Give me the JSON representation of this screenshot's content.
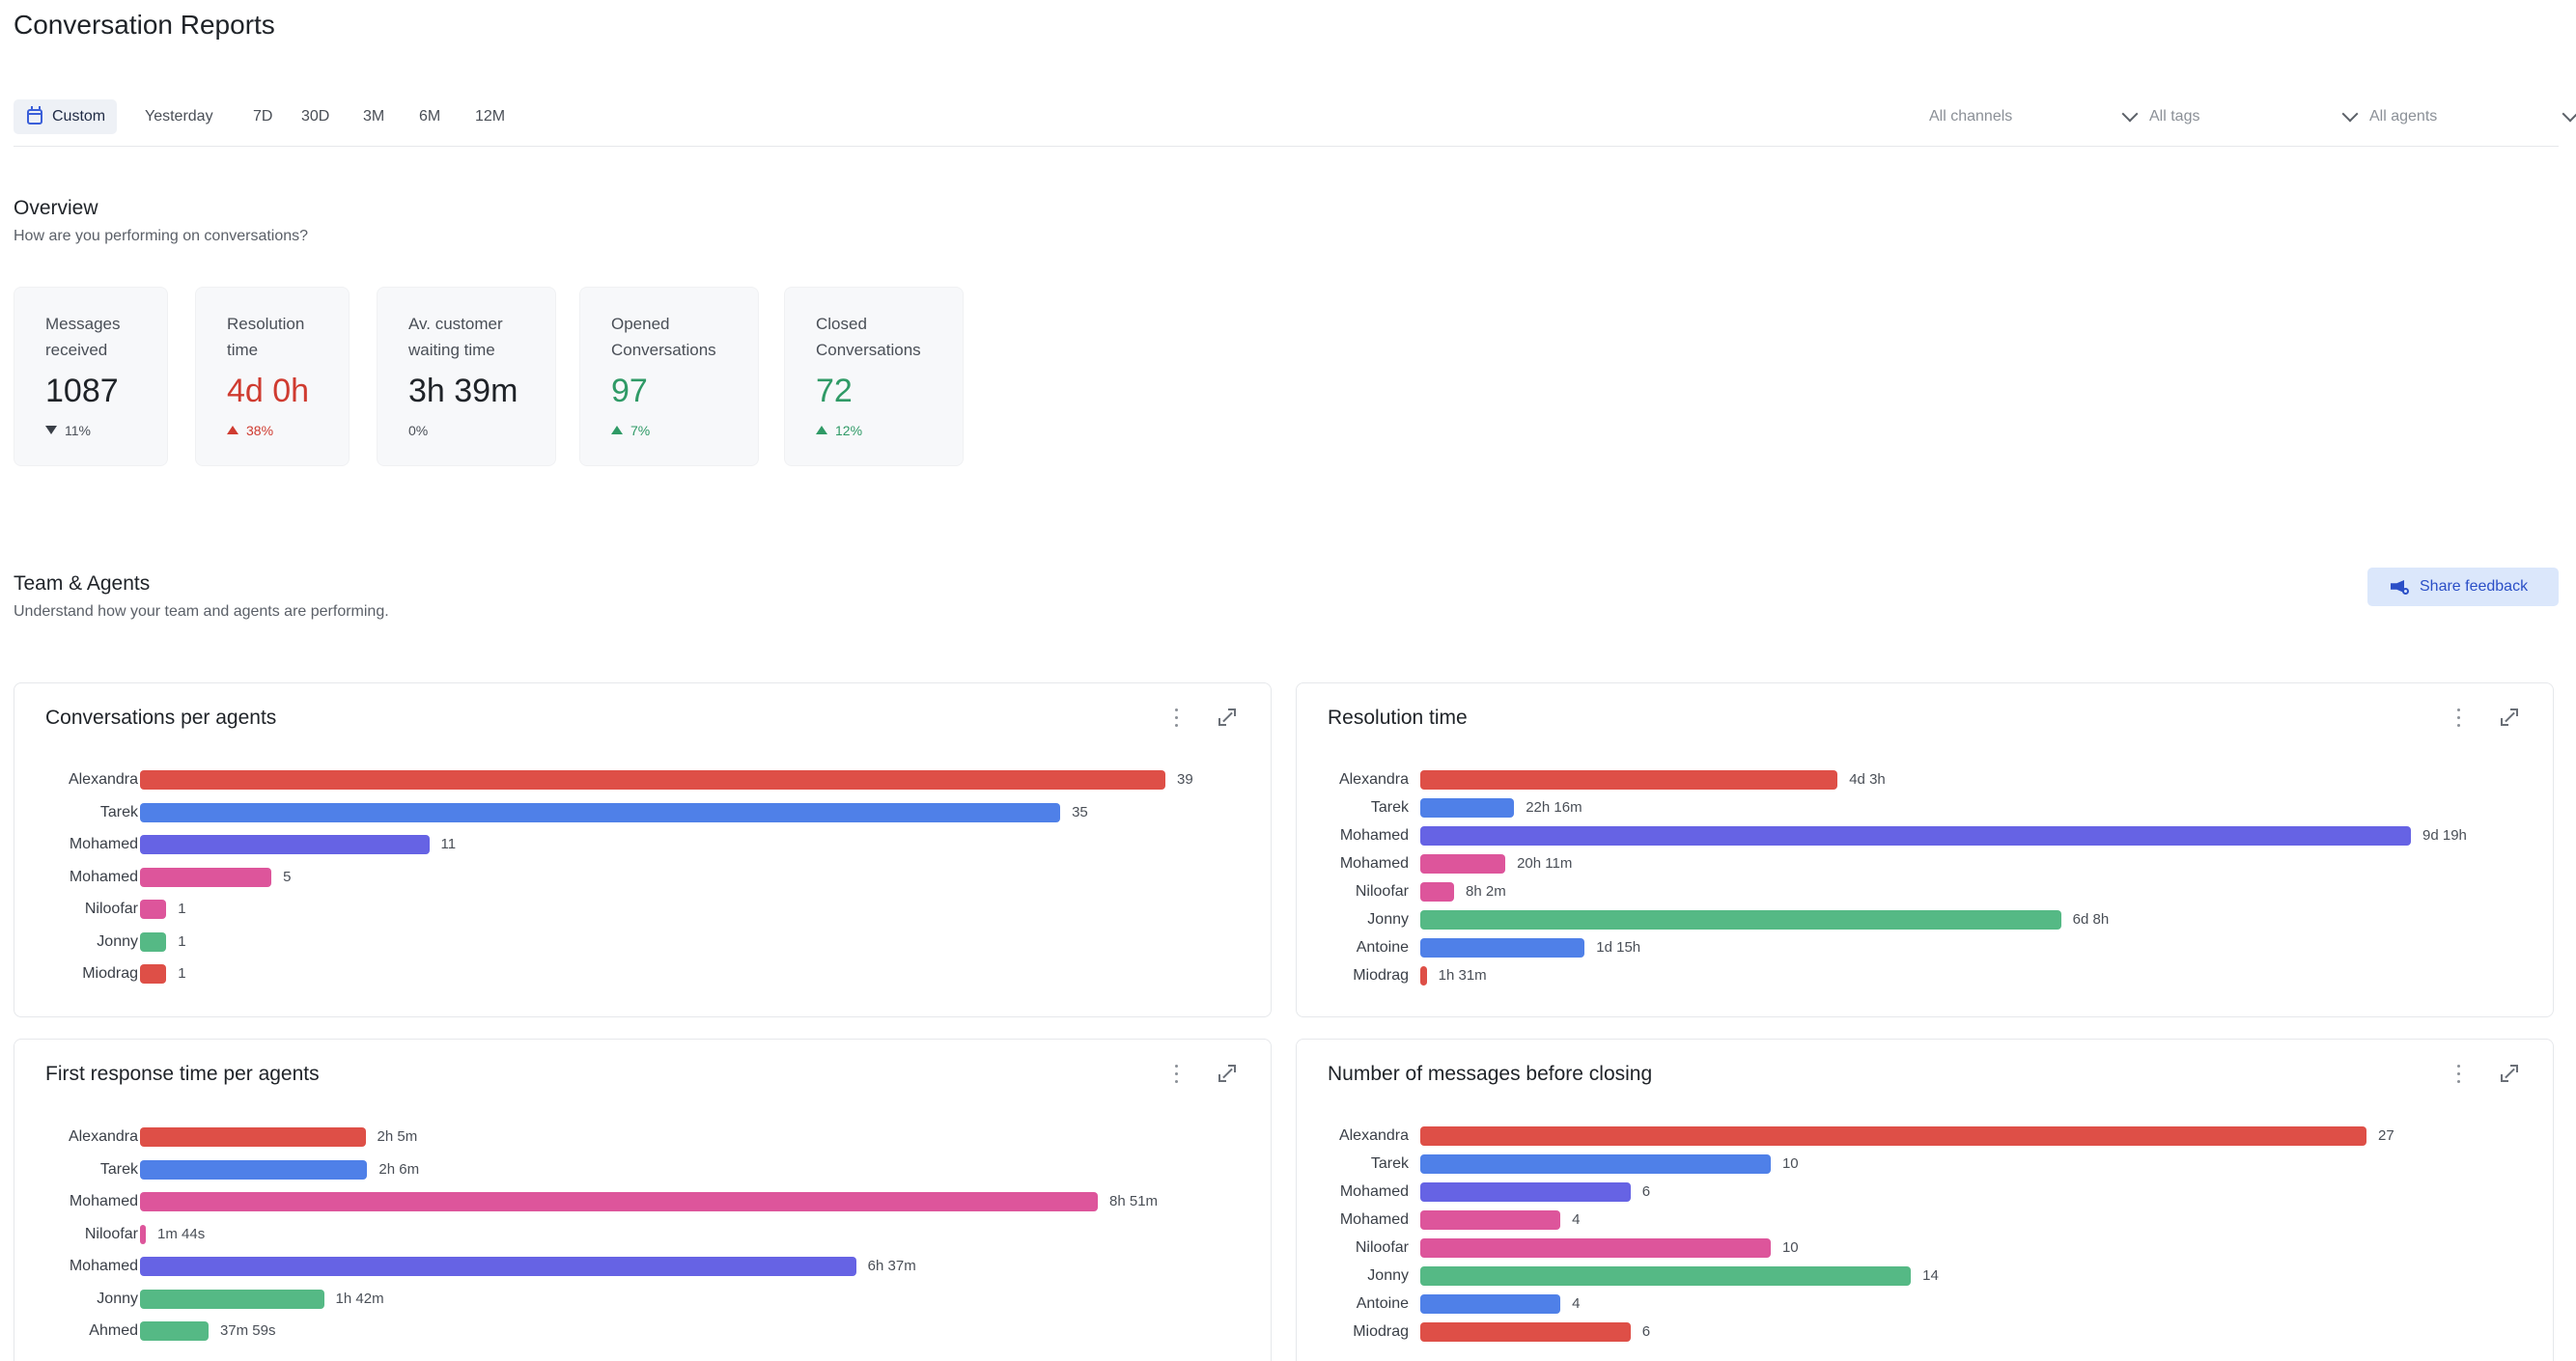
{
  "page": {
    "title": "Conversation Reports"
  },
  "toolbar": {
    "ranges": [
      "Custom",
      "Yesterday",
      "7D",
      "30D",
      "3M",
      "6M",
      "12M"
    ],
    "active_range": "Custom",
    "filters": {
      "channels": "All channels",
      "tags": "All tags",
      "agents": "All agents"
    }
  },
  "overview": {
    "title": "Overview",
    "subtitle": "How are you performing on conversations?",
    "kpis": [
      {
        "label": "Messages\nreceived",
        "value": "1087",
        "delta": "11%",
        "trend": "down",
        "tone": "neutral"
      },
      {
        "label": "Resolution\ntime",
        "value": "4d 0h",
        "delta": "38%",
        "trend": "up",
        "tone": "red"
      },
      {
        "label": "Av. customer\nwaiting time",
        "value": "3h 39m",
        "delta": "0%",
        "trend": "flat",
        "tone": "neutral"
      },
      {
        "label": "Opened\nConversations",
        "value": "97",
        "delta": "7%",
        "trend": "up",
        "tone": "green"
      },
      {
        "label": "Closed\nConversations",
        "value": "72",
        "delta": "12%",
        "trend": "up",
        "tone": "green"
      }
    ]
  },
  "team": {
    "title": "Team & Agents",
    "subtitle": "Understand how your team and agents are performing.",
    "share_feedback": "Share feedback"
  },
  "colors": {
    "red": "#de4f47",
    "blue": "#4f80e8",
    "indigo": "#6663e4",
    "pink": "#dd559b",
    "green": "#55b985"
  },
  "charts": [
    {
      "title": "Conversations per agents",
      "rows": [
        {
          "name": "Alexandra",
          "value": 39,
          "label": "39",
          "color": "red"
        },
        {
          "name": "Tarek",
          "value": 35,
          "label": "35",
          "color": "blue"
        },
        {
          "name": "Mohamed",
          "value": 11,
          "label": "11",
          "color": "indigo"
        },
        {
          "name": "Mohamed",
          "value": 5,
          "label": "5",
          "color": "pink"
        },
        {
          "name": "Niloofar",
          "value": 1,
          "label": "1",
          "color": "pink"
        },
        {
          "name": "Jonny",
          "value": 1,
          "label": "1",
          "color": "green"
        },
        {
          "name": "Miodrag",
          "value": 1,
          "label": "1",
          "color": "red"
        }
      ]
    },
    {
      "title": "Resolution time",
      "rows": [
        {
          "name": "Alexandra",
          "value": 99,
          "label": "4d 3h",
          "color": "red"
        },
        {
          "name": "Tarek",
          "value": 22.27,
          "label": "22h 16m",
          "color": "blue"
        },
        {
          "name": "Mohamed",
          "value": 235,
          "label": "9d 19h",
          "color": "indigo"
        },
        {
          "name": "Mohamed",
          "value": 20.18,
          "label": "20h 11m",
          "color": "pink"
        },
        {
          "name": "Niloofar",
          "value": 8.03,
          "label": "8h 2m",
          "color": "pink"
        },
        {
          "name": "Jonny",
          "value": 152,
          "label": "6d 8h",
          "color": "green"
        },
        {
          "name": "Antoine",
          "value": 39,
          "label": "1d 15h",
          "color": "blue"
        },
        {
          "name": "Miodrag",
          "value": 1.52,
          "label": "1h 31m",
          "color": "red"
        }
      ]
    },
    {
      "title": "First response time per agents",
      "rows": [
        {
          "name": "Alexandra",
          "value": 125,
          "label": "2h 5m",
          "color": "red"
        },
        {
          "name": "Tarek",
          "value": 126,
          "label": "2h 6m",
          "color": "blue"
        },
        {
          "name": "Mohamed",
          "value": 531,
          "label": "8h 51m",
          "color": "pink"
        },
        {
          "name": "Niloofar",
          "value": 1.73,
          "label": "1m 44s",
          "color": "pink"
        },
        {
          "name": "Mohamed",
          "value": 397,
          "label": "6h 37m",
          "color": "indigo"
        },
        {
          "name": "Jonny",
          "value": 102,
          "label": "1h 42m",
          "color": "green"
        },
        {
          "name": "Ahmed",
          "value": 37.98,
          "label": "37m 59s",
          "color": "green"
        }
      ]
    },
    {
      "title": "Number of messages before closing",
      "rows": [
        {
          "name": "Alexandra",
          "value": 27,
          "label": "27",
          "color": "red"
        },
        {
          "name": "Tarek",
          "value": 10,
          "label": "10",
          "color": "blue"
        },
        {
          "name": "Mohamed",
          "value": 6,
          "label": "6",
          "color": "indigo"
        },
        {
          "name": "Mohamed",
          "value": 4,
          "label": "4",
          "color": "pink"
        },
        {
          "name": "Niloofar",
          "value": 10,
          "label": "10",
          "color": "pink"
        },
        {
          "name": "Jonny",
          "value": 14,
          "label": "14",
          "color": "green"
        },
        {
          "name": "Antoine",
          "value": 4,
          "label": "4",
          "color": "blue"
        },
        {
          "name": "Miodrag",
          "value": 6,
          "label": "6",
          "color": "red"
        }
      ]
    }
  ]
}
